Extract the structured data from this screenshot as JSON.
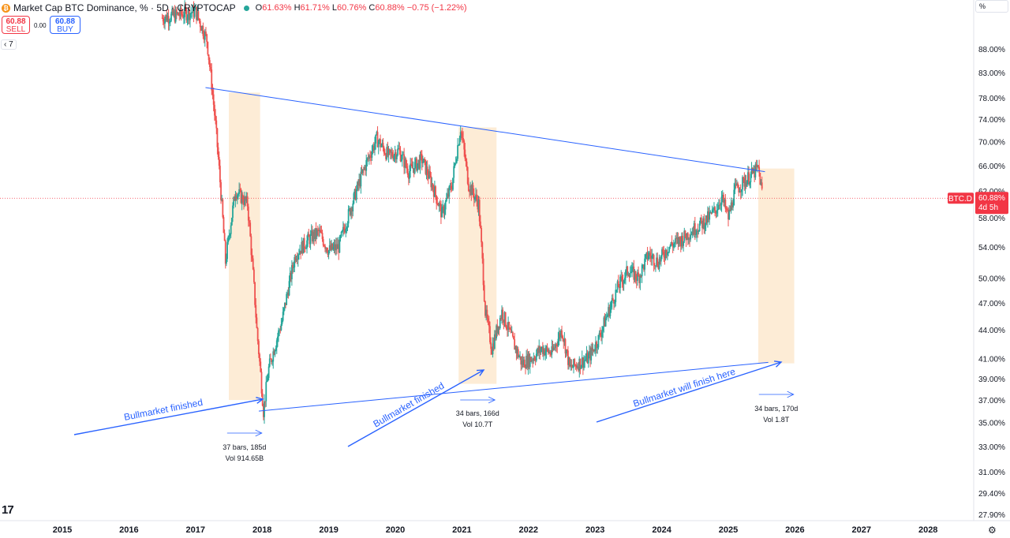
{
  "header": {
    "title": "Market Cap BTC Dominance, % · 5D · CRYPTOCAP",
    "open_label": "O",
    "open": "61.63%",
    "high_label": "H",
    "high": "61.71%",
    "low_label": "L",
    "low": "60.76%",
    "close_label": "C",
    "close": "60.88%",
    "change": "−0.75 (−1.22%)",
    "coin_icon": "bitcoin-icon",
    "status_color": "#26a69a"
  },
  "trade": {
    "sell_price": "60.88",
    "sell_label": "SELL",
    "spread": "0.00",
    "buy_price": "60.88",
    "buy_label": "BUY"
  },
  "controls": {
    "collapse_label": "7",
    "scale_button": "%"
  },
  "price_label": {
    "symbol": "BTC.D",
    "value": "60.88%",
    "countdown": "4d 5h",
    "color": "#f23645"
  },
  "colors": {
    "up": "#26a69a",
    "down": "#ef5350",
    "trendline": "#2962ff",
    "highlight": "#fde9cf",
    "label_text": "#2962ff"
  },
  "chart_data": {
    "type": "candlestick",
    "title": "Market Cap BTC Dominance, %",
    "y_scale": "log",
    "ylim": [
      27.5,
      100
    ],
    "xlim": [
      2014.8,
      2028.5
    ],
    "y_ticks": [
      "88.00%",
      "83.00%",
      "78.00%",
      "74.00%",
      "70.00%",
      "66.00%",
      "62.00%",
      "58.00%",
      "54.00%",
      "50.00%",
      "47.00%",
      "44.00%",
      "41.00%",
      "39.00%",
      "37.00%",
      "35.00%",
      "33.00%",
      "31.00%",
      "29.40%",
      "27.90%"
    ],
    "x_ticks": [
      "2015",
      "2016",
      "2017",
      "2018",
      "2019",
      "2020",
      "2021",
      "2022",
      "2023",
      "2024",
      "2025",
      "2026",
      "2027",
      "2028"
    ],
    "series_anchor": [
      [
        2016.5,
        95.0
      ],
      [
        2017.0,
        96.5
      ],
      [
        2017.17,
        90.0
      ],
      [
        2017.3,
        73.0
      ],
      [
        2017.45,
        52.0
      ],
      [
        2017.6,
        62.0
      ],
      [
        2017.78,
        60.0
      ],
      [
        2017.92,
        44.0
      ],
      [
        2018.02,
        36.0
      ],
      [
        2018.1,
        40.0
      ],
      [
        2018.3,
        45.0
      ],
      [
        2018.5,
        53.0
      ],
      [
        2018.7,
        55.0
      ],
      [
        2018.85,
        56.0
      ],
      [
        2019.0,
        53.5
      ],
      [
        2019.15,
        54.0
      ],
      [
        2019.35,
        60.0
      ],
      [
        2019.55,
        66.0
      ],
      [
        2019.72,
        70.5
      ],
      [
        2019.9,
        67.5
      ],
      [
        2020.05,
        68.5
      ],
      [
        2020.2,
        65.0
      ],
      [
        2020.4,
        67.0
      ],
      [
        2020.55,
        63.0
      ],
      [
        2020.7,
        58.5
      ],
      [
        2020.85,
        63.0
      ],
      [
        2020.98,
        72.5
      ],
      [
        2021.1,
        63.0
      ],
      [
        2021.25,
        60.0
      ],
      [
        2021.35,
        46.0
      ],
      [
        2021.45,
        42.0
      ],
      [
        2021.6,
        46.0
      ],
      [
        2021.75,
        43.0
      ],
      [
        2021.9,
        40.5
      ],
      [
        2022.05,
        41.0
      ],
      [
        2022.2,
        42.0
      ],
      [
        2022.35,
        41.5
      ],
      [
        2022.5,
        44.0
      ],
      [
        2022.62,
        40.0
      ],
      [
        2022.75,
        40.5
      ],
      [
        2022.9,
        41.0
      ],
      [
        2023.05,
        43.0
      ],
      [
        2023.2,
        46.0
      ],
      [
        2023.35,
        49.0
      ],
      [
        2023.5,
        51.0
      ],
      [
        2023.65,
        50.0
      ],
      [
        2023.8,
        53.0
      ],
      [
        2023.95,
        52.0
      ],
      [
        2024.1,
        54.0
      ],
      [
        2024.3,
        55.0
      ],
      [
        2024.5,
        56.5
      ],
      [
        2024.65,
        57.5
      ],
      [
        2024.8,
        59.0
      ],
      [
        2024.9,
        61.0
      ],
      [
        2025.0,
        58.0
      ],
      [
        2025.1,
        62.0
      ],
      [
        2025.2,
        63.0
      ],
      [
        2025.35,
        64.5
      ],
      [
        2025.45,
        65.5
      ],
      [
        2025.52,
        60.88
      ]
    ],
    "trendlines": [
      {
        "from": [
          2017.15,
          80.0
        ],
        "to": [
          2025.55,
          65.0
        ],
        "color": "#2962ff"
      },
      {
        "from": [
          2017.95,
          36.0
        ],
        "to": [
          2025.6,
          40.6
        ],
        "color": "#2962ff"
      }
    ],
    "highlight_ranges": [
      {
        "x": [
          2017.5,
          2017.97
        ],
        "y": [
          37.0,
          79.0
        ],
        "label1": "37 bars, 185d",
        "label2": "Vol 914.65B"
      },
      {
        "x": [
          2020.95,
          2021.52
        ],
        "y": [
          38.5,
          72.5
        ],
        "label1": "34 bars, 166d",
        "label2": "Vol 10.7T"
      },
      {
        "x": [
          2025.45,
          2025.99
        ],
        "y": [
          40.5,
          65.5
        ],
        "label1": "34 bars, 170d",
        "label2": "Vol 1.8T"
      }
    ],
    "annotations": [
      {
        "text": "Bullmarket finished",
        "anchor": "left"
      },
      {
        "text": "Bullmarket finished",
        "anchor": "middle"
      },
      {
        "text": "Bullmarket will finish here",
        "anchor": "right"
      }
    ]
  }
}
